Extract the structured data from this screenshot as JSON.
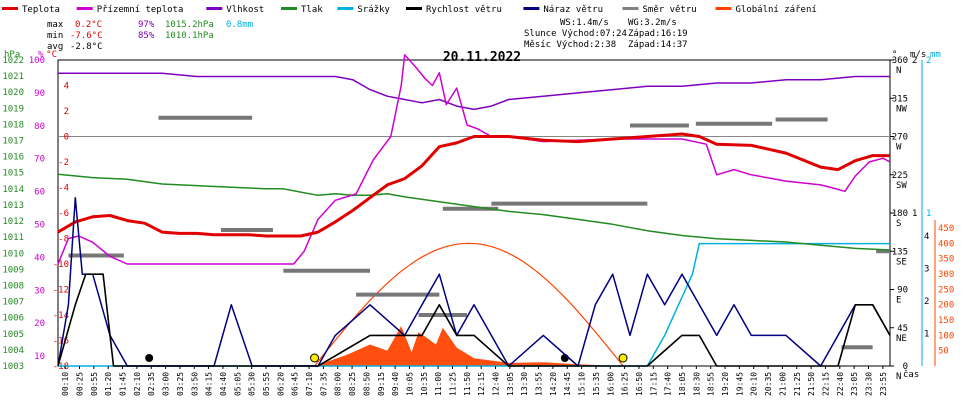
{
  "chart_data": {
    "type": "line",
    "title": "20.11.2022",
    "legend": [
      {
        "label": "Teplota",
        "color": "#e00000"
      },
      {
        "label": "Přízemní teplota",
        "color": "#d000d0"
      },
      {
        "label": "Vlhkost",
        "color": "#8000c0"
      },
      {
        "label": "Tlak",
        "color": "#228b22"
      },
      {
        "label": "Srážky",
        "color": "#00b0e0"
      },
      {
        "label": "Rychlost větru",
        "color": "#000000"
      },
      {
        "label": "Náraz větru",
        "color": "#000080"
      },
      {
        "label": "Směr větru",
        "color": "#808080"
      },
      {
        "label": "Globální záření",
        "color": "#ff4400"
      }
    ],
    "stats": {
      "max_label": "max",
      "max_temp": "0.2°C",
      "max_hum": "97%",
      "max_press": "1015.2hPa",
      "precip": "0.8mm",
      "min_label": "min",
      "min_temp": "-7.6°C",
      "min_hum": "85%",
      "min_press": "1010.1hPa",
      "avg_label": "avg",
      "avg_temp": "-2.8°C",
      "ws": "WS:1.4m/s",
      "wg": "WG:3.2m/s",
      "sun": "Slunce Východ:07:24",
      "sunset": "Západ:16:19",
      "moon": "Měsíc  Východ:2:38",
      "moonset": "Západ:14:37"
    },
    "axes": {
      "hpa": {
        "unit": "hPa",
        "ticks": [
          1022,
          1021,
          1020,
          1019,
          1018,
          1017,
          1016,
          1015,
          1014,
          1013,
          1012,
          1011,
          1010,
          1009,
          1008,
          1007,
          1006,
          1005,
          1004,
          1003
        ],
        "ylim": [
          1003,
          1022
        ]
      },
      "percent": {
        "unit": "%",
        "ticks": [
          100,
          90,
          80,
          70,
          60,
          50,
          40,
          30,
          20,
          10
        ],
        "ylim": [
          7,
          100
        ]
      },
      "temp": {
        "unit": "°C",
        "ticks": [
          4,
          2,
          0,
          -2,
          -4,
          -6,
          -8,
          -10,
          -12,
          -14,
          -16,
          -18
        ],
        "ylim": [
          -18,
          6
        ]
      },
      "direction": {
        "unit": "°",
        "ticks": [
          {
            "deg": "360",
            "dir": "N"
          },
          {
            "deg": "315",
            "dir": "NW"
          },
          {
            "deg": "270",
            "dir": "W"
          },
          {
            "deg": "225",
            "dir": "SW"
          },
          {
            "deg": "180",
            "dir": "S"
          },
          {
            "deg": "135",
            "dir": "SE"
          },
          {
            "deg": "90",
            "dir": "E"
          },
          {
            "deg": "45",
            "dir": "NE"
          },
          {
            "deg": "0",
            "dir": "N"
          }
        ]
      },
      "wind": {
        "unit": "m/s",
        "ticks": [
          2,
          1
        ],
        "ylim": [
          0,
          2
        ]
      },
      "rain_mm": {
        "unit": "mm",
        "ticks": [
          2,
          1
        ],
        "ylim": [
          0,
          2
        ]
      },
      "wind_right": {
        "ticks": [
          4,
          3,
          2,
          1
        ]
      },
      "radiation": {
        "ticks": [
          450,
          400,
          350,
          300,
          250,
          200,
          150,
          100,
          50
        ],
        "ylim": [
          0,
          450
        ]
      },
      "x_label": "čas",
      "x_ticks": [
        "00:10",
        "00:25",
        "00:55",
        "01:20",
        "01:45",
        "02:10",
        "02:35",
        "03:00",
        "03:25",
        "03:50",
        "04:15",
        "04:40",
        "05:05",
        "05:30",
        "05:55",
        "06:20",
        "06:45",
        "07:10",
        "07:35",
        "08:00",
        "08:25",
        "08:50",
        "09:15",
        "09:40",
        "10:05",
        "10:35",
        "11:00",
        "11:25",
        "11:50",
        "12:15",
        "12:40",
        "13:05",
        "13:30",
        "13:55",
        "14:20",
        "14:45",
        "15:10",
        "15:35",
        "16:00",
        "16:25",
        "16:50",
        "17:15",
        "17:40",
        "18:05",
        "18:30",
        "18:55",
        "19:20",
        "19:45",
        "20:10",
        "20:35",
        "21:00",
        "21:25",
        "21:50",
        "22:15",
        "22:40",
        "23:05",
        "23:30",
        "23:55"
      ]
    },
    "series": [
      {
        "name": "Teplota",
        "key": "temp",
        "axis": "temp",
        "x": [
          0,
          0.5,
          1,
          1.5,
          2,
          2.5,
          3,
          3.5,
          4,
          4.5,
          5,
          5.5,
          6,
          6.5,
          7,
          7.5,
          8,
          8.5,
          9,
          9.5,
          10,
          10.5,
          11,
          11.5,
          12,
          13,
          14,
          15,
          16,
          17,
          18,
          18.5,
          19,
          20,
          21,
          22,
          22.5,
          23,
          23.5,
          24
        ],
        "y": [
          -7.5,
          -6.7,
          -6.3,
          -6.2,
          -6.6,
          -6.8,
          -7.5,
          -7.6,
          -7.6,
          -7.7,
          -7.7,
          -7.7,
          -7.8,
          -7.8,
          -7.8,
          -7.5,
          -6.7,
          -5.8,
          -4.8,
          -3.8,
          -3.3,
          -2.3,
          -0.8,
          -0.5,
          0.0,
          0.0,
          -0.3,
          -0.4,
          -0.2,
          0.0,
          0.2,
          0.0,
          -0.6,
          -0.7,
          -1.3,
          -2.4,
          -2.6,
          -1.9,
          -1.5,
          -1.5
        ]
      },
      {
        "name": "Přízemní teplota",
        "key": "ground",
        "axis": "temp",
        "x": [
          0,
          0.3,
          0.6,
          1,
          1.5,
          2,
          2.5,
          3,
          4,
          5,
          6,
          6.8,
          7.1,
          7.5,
          8,
          8.6,
          9.1,
          9.6,
          9.9,
          10,
          10.3,
          10.6,
          10.8,
          11,
          11.2,
          11.5,
          11.8,
          12.1,
          12.5,
          13,
          14,
          15,
          16,
          17,
          18,
          18.7,
          19,
          19.5,
          20,
          21,
          22,
          22.3,
          22.7,
          23,
          23.4,
          23.8,
          24
        ],
        "y": [
          -10,
          -8,
          -7.8,
          -8.3,
          -9.4,
          -10,
          -10,
          -10,
          -10,
          -10,
          -10,
          -10,
          -9,
          -6.5,
          -5,
          -4.5,
          -1.8,
          0,
          4,
          6.4,
          5.5,
          4.5,
          4,
          5,
          2.5,
          3.8,
          0.9,
          0.6,
          0,
          0,
          -0.4,
          -0.3,
          -0.2,
          -0.2,
          -0.2,
          -0.6,
          -3,
          -2.6,
          -3,
          -3.5,
          -3.8,
          -4,
          -4.3,
          -3.1,
          -2,
          -1.7,
          -2
        ]
      },
      {
        "name": "Vlhkost",
        "key": "humidity",
        "axis": "percent",
        "x": [
          0,
          2,
          3,
          4,
          5,
          6,
          7,
          7.5,
          8,
          8.5,
          9,
          9.5,
          10,
          10.5,
          11,
          11.5,
          12,
          12.5,
          13,
          14,
          15,
          16,
          17,
          18,
          19,
          20,
          21,
          22,
          23,
          24
        ],
        "y": [
          96,
          96,
          96,
          95,
          95,
          95,
          95,
          95,
          95,
          94,
          91,
          89,
          88,
          87,
          88,
          86,
          85,
          86,
          88,
          89,
          90,
          91,
          92,
          92,
          93,
          93,
          94,
          94,
          95,
          95
        ]
      },
      {
        "name": "Tlak",
        "key": "pressure",
        "axis": "hpa",
        "x": [
          0,
          1,
          2,
          3,
          4,
          5,
          6,
          6.5,
          7,
          7.5,
          8,
          8.5,
          9,
          9.5,
          10,
          11,
          12,
          13,
          14,
          15,
          16,
          17,
          18,
          19,
          20,
          21,
          22,
          23,
          24
        ],
        "y": [
          1014.9,
          1014.7,
          1014.6,
          1014.3,
          1014.2,
          1014.1,
          1014.0,
          1014.0,
          1013.8,
          1013.6,
          1013.7,
          1013.6,
          1013.6,
          1013.7,
          1013.5,
          1013.2,
          1012.9,
          1012.6,
          1012.4,
          1012.1,
          1011.8,
          1011.4,
          1011.1,
          1010.9,
          1010.8,
          1010.7,
          1010.5,
          1010.3,
          1010.2
        ]
      },
      {
        "name": "Srážky",
        "key": "precip",
        "axis": "rain_mm",
        "x": [
          0,
          16,
          17,
          17.5,
          17.9,
          18.1,
          18.3,
          18.5,
          19,
          19.2,
          24
        ],
        "y": [
          0,
          0,
          0,
          0.2,
          0.4,
          0.5,
          0.6,
          0.8,
          0.8,
          0.8,
          0.8
        ]
      },
      {
        "name": "Globální záření",
        "key": "radiation",
        "axis": "radiation",
        "x": [
          7.4,
          8.3,
          8.6,
          9,
          9.5,
          9.9,
          10.2,
          10.4,
          10.6,
          10.9,
          11.1,
          11.5,
          12,
          13,
          14,
          15,
          16.3
        ],
        "y": [
          0,
          35,
          50,
          70,
          50,
          130,
          45,
          110,
          95,
          70,
          125,
          60,
          25,
          10,
          12,
          6,
          0
        ]
      },
      {
        "name": "Rychlost větru",
        "key": "wind",
        "axis": "wind",
        "x": [
          0,
          0.5,
          0.8,
          1,
          1.3,
          1.6,
          2,
          7.5,
          9,
          10,
          10.5,
          11,
          11.5,
          12,
          13,
          15,
          16,
          17,
          18,
          18.5,
          19,
          22.5,
          23,
          23.5,
          24
        ],
        "y": [
          0,
          0.4,
          0.6,
          0.6,
          0.6,
          0,
          0,
          0,
          0.2,
          0.2,
          0.2,
          0.4,
          0.2,
          0.2,
          0,
          0,
          0,
          0,
          0.2,
          0.2,
          0,
          0,
          0.4,
          0.4,
          0.2
        ]
      },
      {
        "name": "Náraz větru",
        "key": "gust",
        "axis": "wind",
        "x": [
          0,
          0.3,
          0.5,
          0.7,
          1,
          1.5,
          2,
          3,
          4,
          4.5,
          5,
          5.3,
          5.6,
          7.5,
          8,
          9,
          10,
          10.5,
          11,
          11.5,
          12,
          13,
          14,
          15,
          15.5,
          16,
          16.5,
          17,
          17.5,
          18,
          18.5,
          19,
          19.5,
          20,
          21,
          22,
          22.5,
          23,
          23.5,
          24
        ],
        "y": [
          0,
          0.4,
          1.1,
          0.6,
          0.6,
          0.2,
          0,
          0,
          0,
          0,
          0.4,
          0.2,
          0,
          0,
          0.2,
          0.4,
          0.2,
          0.4,
          0.6,
          0.2,
          0.4,
          0,
          0.2,
          0,
          0.4,
          0.6,
          0.2,
          0.6,
          0.4,
          0.6,
          0.4,
          0.2,
          0.4,
          0.2,
          0.2,
          0,
          0.2,
          0.4,
          0.4,
          0.2
        ]
      }
    ],
    "wind_direction": {
      "axis": "direction",
      "bars": [
        {
          "x0": 0.3,
          "x1": 1.9,
          "deg": 130
        },
        {
          "x0": 2.9,
          "x1": 5.6,
          "deg": 292
        },
        {
          "x0": 4.7,
          "x1": 6.2,
          "deg": 160
        },
        {
          "x0": 6.5,
          "x1": 9.0,
          "deg": 112
        },
        {
          "x0": 8.6,
          "x1": 11.0,
          "deg": 84
        },
        {
          "x0": 10.4,
          "x1": 11.8,
          "deg": 60
        },
        {
          "x0": 11.1,
          "x1": 12.7,
          "deg": 185
        },
        {
          "x0": 12.5,
          "x1": 17.0,
          "deg": 191
        },
        {
          "x0": 16.5,
          "x1": 18.2,
          "deg": 283
        },
        {
          "x0": 18.4,
          "x1": 20.6,
          "deg": 285
        },
        {
          "x0": 20.7,
          "x1": 22.2,
          "deg": 290
        },
        {
          "x0": 22.6,
          "x1": 23.5,
          "deg": 22
        },
        {
          "x0": 23.6,
          "x1": 24.0,
          "deg": 135
        }
      ]
    },
    "sun": {
      "rise": 7.4,
      "set": 16.3,
      "peak": 400
    },
    "moon": {
      "rise": 2.63,
      "set": 14.62
    }
  }
}
